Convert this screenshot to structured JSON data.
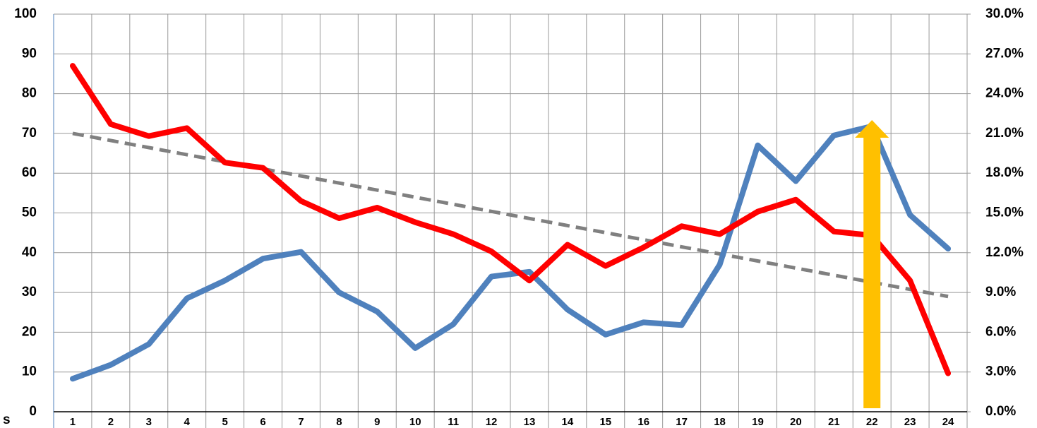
{
  "chart_data": {
    "type": "line",
    "x_label": "s",
    "categories": [
      "1",
      "2",
      "3",
      "4",
      "5",
      "6",
      "7",
      "8",
      "9",
      "10",
      "11",
      "12",
      "13",
      "14",
      "15",
      "16",
      "17",
      "18",
      "19",
      "20",
      "21",
      "22",
      "23",
      "24"
    ],
    "series": [
      {
        "color": "#4f81bd",
        "axis": "y",
        "values": [
          8.3,
          11.8,
          17,
          28.5,
          33,
          38.5,
          40.2,
          30,
          25.2,
          16,
          22,
          34,
          35.2,
          25.7,
          19.4,
          22.5,
          21.8,
          37,
          67,
          58,
          69.5,
          71.8,
          49.5,
          41
        ]
      },
      {
        "color": "#ff0000",
        "axis": "y2",
        "values": [
          26.1,
          21.7,
          20.8,
          21.4,
          18.8,
          18.4,
          15.9,
          14.6,
          15.4,
          14.3,
          13.4,
          12.1,
          9.9,
          12.6,
          11.0,
          12.4,
          14.0,
          13.4,
          15.1,
          16.0,
          13.6,
          13.3,
          9.9,
          2.9
        ]
      }
    ],
    "trendline": {
      "color": "#808080",
      "axis": "y2",
      "values": [
        21.0,
        8.7
      ]
    },
    "ylim": [
      0,
      100
    ],
    "yticks": [
      0,
      10,
      20,
      30,
      40,
      50,
      60,
      70,
      80,
      90,
      100
    ],
    "y2lim": [
      0,
      30
    ],
    "y2ticks": [
      {
        "value": 0,
        "label": "0.0%"
      },
      {
        "value": 3,
        "label": "3.0%"
      },
      {
        "value": 6,
        "label": "6.0%"
      },
      {
        "value": 9,
        "label": "9.0%"
      },
      {
        "value": 12,
        "label": "12.0%"
      },
      {
        "value": 15,
        "label": "15.0%"
      },
      {
        "value": 18,
        "label": "18.0%"
      },
      {
        "value": 21,
        "label": "21.0%"
      },
      {
        "value": 24,
        "label": "24.0%"
      },
      {
        "value": 27,
        "label": "27.0%"
      },
      {
        "value": 30,
        "label": "30.0%"
      }
    ],
    "grid": true
  }
}
